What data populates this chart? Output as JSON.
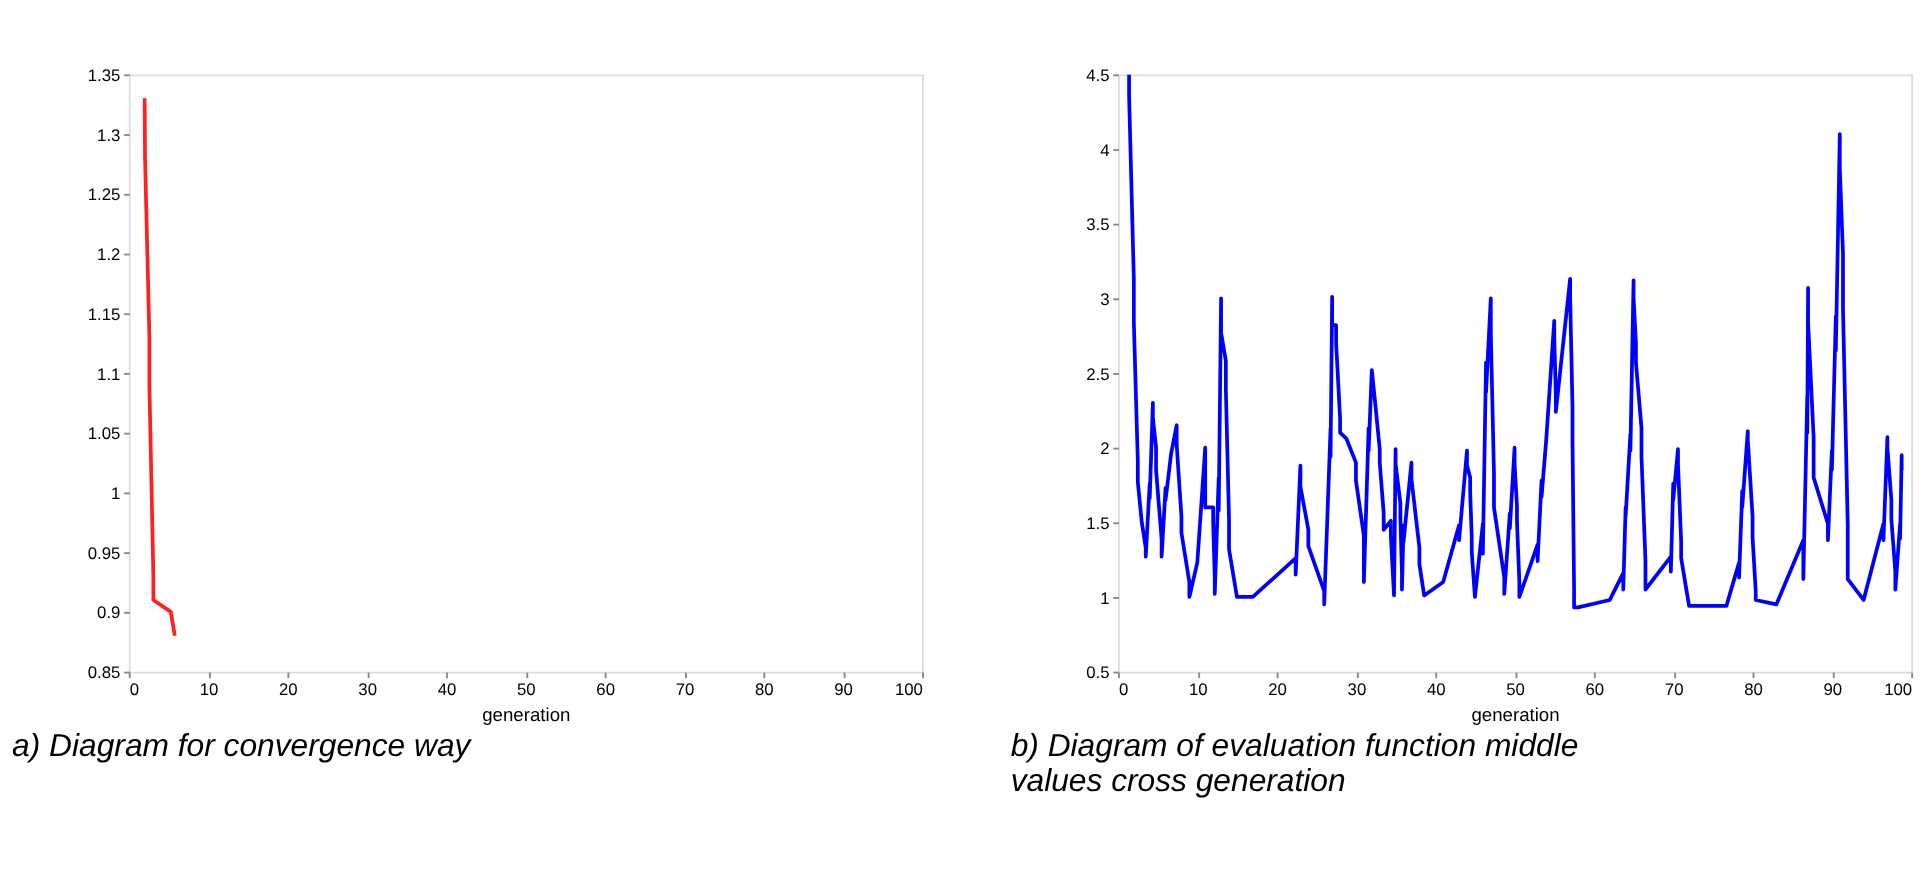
{
  "chart_data": [
    {
      "type": "line",
      "title": "a) Diagram for convergence way",
      "xlabel": "generation",
      "xlim": [
        0,
        100
      ],
      "xticks": [
        0,
        10,
        20,
        30,
        40,
        50,
        60,
        70,
        80,
        90,
        100
      ],
      "ylim": [
        0.85,
        1.35
      ],
      "yticks": [
        0.85,
        0.9,
        0.95,
        1,
        1.05,
        1.1,
        1.15,
        1.2,
        1.25,
        1.3,
        1.35
      ],
      "grid": false,
      "series": [
        {
          "color": "#ff2020",
          "x": [
            2,
            2.05,
            2.6,
            2.6,
            3.1,
            3.1,
            5.3,
            5.8
          ],
          "values": [
            1.33,
            1.28,
            1.13,
            1.09,
            0.93,
            0.91,
            0.9,
            0.88
          ]
        }
      ]
    },
    {
      "type": "line",
      "title": "b) Diagram of evaluation function middle values cross generation",
      "xlabel": "generation",
      "xlim": [
        0,
        100
      ],
      "xticks": [
        0,
        10,
        20,
        30,
        40,
        50,
        60,
        70,
        80,
        90,
        100
      ],
      "ylim": [
        0.5,
        4.5
      ],
      "yticks": [
        0.5,
        1,
        1.5,
        2,
        2.5,
        3,
        3.5,
        4,
        4.5
      ],
      "grid": false,
      "series": [
        {
          "color": "#0000ff",
          "x": [
            1.4,
            1.4,
            2,
            2,
            2.5,
            2.5,
            3,
            3.5,
            3.5,
            4,
            4,
            4.4,
            4.4,
            4.8,
            4.8,
            5.5,
            5.5,
            6,
            6,
            6.7,
            7.4,
            7.4,
            8,
            8,
            9,
            9,
            10,
            11,
            11,
            12,
            12,
            12.2,
            12.2,
            12.7,
            12.7,
            13,
            13,
            13.6,
            13.6,
            14,
            14,
            15,
            17,
            22.4,
            22.4,
            23,
            23,
            24,
            24,
            26,
            26,
            26.8,
            26.8,
            27,
            27,
            27.5,
            27.5,
            28,
            28,
            28.8,
            30,
            30,
            31,
            31,
            31.6,
            31.6,
            32,
            32.5,
            33,
            33,
            33.5,
            33.5,
            34.4,
            34.4,
            34.8,
            35,
            35,
            35.6,
            35.6,
            35.8,
            35.8,
            36,
            36,
            37,
            37,
            38,
            38,
            38.6,
            41,
            43,
            43,
            44,
            44,
            44.4,
            44.4,
            44.6,
            44.6,
            45,
            46,
            46,
            46.4,
            46.4,
            47,
            47,
            47.4,
            47.4,
            48.7,
            48.7,
            49.4,
            49.4,
            50,
            50,
            50.3,
            50.3,
            50.6,
            50.6,
            52.9,
            52.9,
            53.4,
            53.4,
            54,
            55,
            55,
            55.2,
            55.2,
            57,
            57,
            57.3,
            57.3,
            57.5,
            57.5,
            58,
            62,
            63.7,
            63.7,
            64,
            64,
            64.6,
            64.6,
            65,
            65,
            65.3,
            65.3,
            66,
            66,
            66.5,
            66.5,
            69.7,
            69.7,
            70,
            70,
            70.6,
            70.6,
            71,
            71,
            72,
            76.7,
            78.3,
            78.3,
            78.7,
            78.7,
            79.4,
            79.4,
            80,
            80,
            80.4,
            80.4,
            83,
            86.4,
            86.4,
            86.9,
            86.9,
            87,
            87,
            87.7,
            87.7,
            89.5,
            89.5,
            90,
            90,
            90.5,
            90.5,
            91,
            91,
            91.4,
            91.4,
            92,
            92,
            94,
            96.5,
            96.5,
            97,
            97,
            97.5,
            97.5,
            98,
            98,
            98.6,
            98.6,
            98.8,
            98.8
          ],
          "values": [
            4.5,
            4.36,
            3.13,
            2.84,
            1.91,
            1.77,
            1.5,
            1.33,
            1.27,
            1.76,
            1.66,
            2.3,
            2.2,
            2.0,
            1.85,
            1.39,
            1.27,
            1.73,
            1.65,
            1.96,
            2.15,
            2.02,
            1.54,
            1.43,
            1.1,
            1.0,
            1.23,
            2.0,
            1.6,
            1.6,
            1.5,
            1.13,
            1.02,
            1.8,
            1.58,
            3.0,
            2.77,
            2.58,
            2.39,
            1.52,
            1.32,
            1.0,
            1.0,
            1.26,
            1.15,
            1.88,
            1.74,
            1.45,
            1.34,
            1.04,
            0.95,
            2.13,
            1.94,
            3.01,
            2.82,
            2.82,
            2.7,
            2.2,
            2.1,
            2.06,
            1.9,
            1.78,
            1.41,
            1.1,
            2.13,
            1.98,
            2.52,
            2.26,
            1.99,
            1.9,
            1.56,
            1.45,
            1.51,
            1.41,
            1.01,
            1.99,
            1.89,
            1.63,
            1.54,
            1.16,
            1.05,
            1.48,
            1.37,
            1.9,
            1.79,
            1.33,
            1.22,
            1.01,
            1.1,
            1.48,
            1.38,
            1.98,
            1.88,
            1.8,
            1.7,
            1.4,
            1.3,
            1.0,
            1.49,
            1.29,
            2.57,
            2.37,
            3.0,
            2.77,
            1.83,
            1.6,
            1.13,
            1.02,
            1.56,
            1.46,
            2.0,
            1.89,
            1.61,
            1.51,
            1.1,
            1.0,
            1.35,
            1.24,
            1.78,
            1.67,
            2.06,
            2.85,
            2.74,
            2.35,
            2.24,
            3.13,
            3.02,
            2.27,
            2.05,
            1.06,
            0.93,
            0.93,
            0.98,
            1.16,
            1.05,
            1.6,
            1.54,
            2.09,
            1.98,
            3.12,
            3.0,
            2.7,
            2.57,
            2.13,
            1.94,
            1.24,
            1.05,
            1.27,
            1.17,
            1.76,
            1.65,
            1.99,
            1.89,
            1.37,
            1.26,
            0.94,
            0.94,
            1.23,
            1.13,
            1.71,
            1.6,
            2.11,
            2.05,
            1.54,
            1.4,
            1.04,
            0.98,
            0.95,
            1.38,
            1.12,
            2.35,
            2.1,
            3.07,
            2.84,
            2.07,
            1.8,
            1.49,
            1.38,
            1.98,
            1.85,
            2.88,
            2.65,
            4.1,
            3.87,
            3.3,
            2.93,
            1.48,
            1.12,
            0.98,
            1.49,
            1.38,
            2.07,
            2.0,
            1.65,
            1.52,
            1.17,
            1.05,
            1.49,
            1.39,
            1.95,
            1.85
          ]
        }
      ]
    }
  ]
}
